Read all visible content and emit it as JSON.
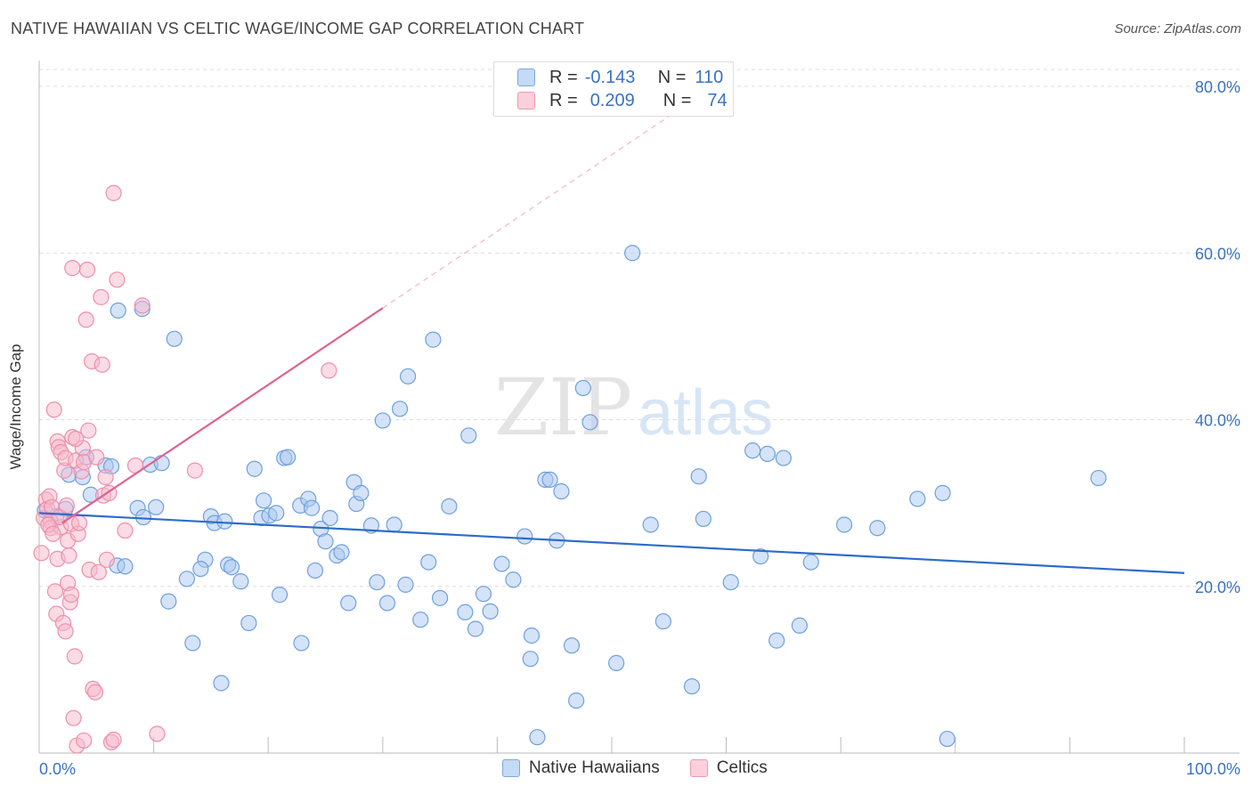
{
  "title": "NATIVE HAWAIIAN VS CELTIC WAGE/INCOME GAP CORRELATION CHART",
  "source": "Source: ZipAtlas.com",
  "watermark": {
    "zip": "ZIP",
    "atlas": "atlas"
  },
  "legend": {
    "rows": [
      {
        "r_label": "R =",
        "r_value": "-0.143",
        "n_label": "N =",
        "n_value": "110",
        "color": "#a9c8f0"
      },
      {
        "r_label": "R =",
        "r_value": "0.209",
        "n_label": "N =",
        "n_value": "74",
        "color": "#f7b8cb"
      }
    ]
  },
  "chart_data": {
    "type": "scatter",
    "title": "NATIVE HAWAIIAN VS CELTIC WAGE/INCOME GAP CORRELATION CHART",
    "xlabel": "",
    "ylabel": "Wage/Income Gap",
    "xlim": [
      0,
      100
    ],
    "ylim": [
      0,
      80
    ],
    "x_tick_labels": [
      "0.0%",
      "100.0%"
    ],
    "y_tick_labels": [
      "20.0%",
      "40.0%",
      "60.0%",
      "80.0%"
    ],
    "y_ticks": [
      20,
      40,
      60,
      80
    ],
    "grid": true,
    "series": [
      {
        "name": "Native Hawaiians",
        "color": "#a9c8f0",
        "stroke": "#6fa0dd",
        "line_color": "#2d6cc9",
        "trend": {
          "x": [
            0,
            100
          ],
          "y": [
            28.8,
            21.6
          ]
        },
        "points": [
          [
            0.5,
            29.1
          ],
          [
            1.5,
            28.4
          ],
          [
            2.3,
            29.3
          ],
          [
            2.6,
            33.4
          ],
          [
            3.8,
            33.1
          ],
          [
            4.1,
            35.5
          ],
          [
            4.5,
            31.0
          ],
          [
            5.8,
            34.5
          ],
          [
            6.3,
            34.4
          ],
          [
            6.8,
            22.5
          ],
          [
            6.9,
            53.1
          ],
          [
            7.5,
            22.4
          ],
          [
            8.6,
            29.4
          ],
          [
            9.1,
            28.3
          ],
          [
            9.0,
            53.3
          ],
          [
            9.7,
            34.6
          ],
          [
            10.2,
            29.5
          ],
          [
            10.7,
            34.8
          ],
          [
            11.3,
            18.2
          ],
          [
            11.8,
            49.7
          ],
          [
            12.9,
            20.9
          ],
          [
            13.4,
            13.2
          ],
          [
            14.5,
            23.2
          ],
          [
            14.1,
            22.1
          ],
          [
            15.0,
            28.4
          ],
          [
            15.3,
            27.6
          ],
          [
            15.9,
            8.4
          ],
          [
            16.2,
            27.8
          ],
          [
            16.5,
            22.6
          ],
          [
            16.8,
            22.3
          ],
          [
            17.6,
            20.6
          ],
          [
            18.3,
            15.6
          ],
          [
            18.8,
            34.1
          ],
          [
            19.4,
            28.2
          ],
          [
            19.6,
            30.3
          ],
          [
            20.1,
            28.5
          ],
          [
            20.7,
            28.8
          ],
          [
            21.0,
            19.0
          ],
          [
            21.4,
            35.4
          ],
          [
            21.7,
            35.5
          ],
          [
            22.8,
            29.7
          ],
          [
            22.9,
            13.2
          ],
          [
            23.5,
            30.5
          ],
          [
            23.8,
            29.4
          ],
          [
            24.1,
            21.9
          ],
          [
            24.6,
            26.9
          ],
          [
            25.0,
            25.4
          ],
          [
            25.4,
            28.2
          ],
          [
            26.0,
            23.7
          ],
          [
            26.4,
            24.1
          ],
          [
            27.0,
            18.0
          ],
          [
            27.5,
            32.5
          ],
          [
            27.7,
            29.9
          ],
          [
            28.1,
            31.2
          ],
          [
            29.0,
            27.3
          ],
          [
            29.5,
            20.5
          ],
          [
            30.0,
            39.9
          ],
          [
            30.4,
            18.0
          ],
          [
            31.0,
            27.4
          ],
          [
            31.5,
            41.3
          ],
          [
            32.0,
            20.2
          ],
          [
            32.2,
            45.2
          ],
          [
            33.3,
            16.0
          ],
          [
            34.0,
            22.9
          ],
          [
            34.4,
            49.6
          ],
          [
            35.0,
            18.6
          ],
          [
            35.8,
            29.6
          ],
          [
            37.2,
            16.9
          ],
          [
            37.5,
            38.1
          ],
          [
            38.1,
            14.9
          ],
          [
            38.8,
            19.1
          ],
          [
            39.4,
            17.0
          ],
          [
            40.4,
            22.7
          ],
          [
            41.4,
            20.8
          ],
          [
            42.4,
            26.0
          ],
          [
            43.0,
            14.1
          ],
          [
            42.9,
            11.3
          ],
          [
            43.5,
            1.9
          ],
          [
            44.2,
            32.8
          ],
          [
            44.6,
            32.8
          ],
          [
            45.2,
            25.5
          ],
          [
            45.6,
            31.4
          ],
          [
            46.5,
            12.9
          ],
          [
            46.9,
            6.3
          ],
          [
            47.5,
            43.8
          ],
          [
            48.1,
            39.7
          ],
          [
            50.4,
            10.8
          ],
          [
            51.8,
            60.0
          ],
          [
            53.4,
            27.4
          ],
          [
            54.5,
            15.8
          ],
          [
            57.0,
            8.0
          ],
          [
            57.6,
            33.2
          ],
          [
            58.0,
            28.1
          ],
          [
            60.4,
            20.5
          ],
          [
            62.3,
            36.3
          ],
          [
            63.0,
            23.6
          ],
          [
            63.6,
            35.9
          ],
          [
            64.4,
            13.5
          ],
          [
            65.0,
            35.4
          ],
          [
            66.4,
            15.3
          ],
          [
            67.4,
            22.9
          ],
          [
            70.3,
            27.4
          ],
          [
            73.2,
            27.0
          ],
          [
            76.7,
            30.5
          ],
          [
            78.9,
            31.2
          ],
          [
            79.3,
            1.7
          ],
          [
            92.5,
            33.0
          ]
        ]
      },
      {
        "name": "Celtics",
        "color": "#f7b8cb",
        "stroke": "#ee8fab",
        "line_color": "#e0628f",
        "trend": {
          "x": [
            2,
            30
          ],
          "y": [
            27.6,
            53.4
          ]
        },
        "trend_dashed": {
          "x": [
            30,
            60
          ],
          "y": [
            53.4,
            81.0
          ]
        },
        "points": [
          [
            0.2,
            24.0
          ],
          [
            0.4,
            28.2
          ],
          [
            0.6,
            30.4
          ],
          [
            0.7,
            29.3
          ],
          [
            0.9,
            30.8
          ],
          [
            1.0,
            27.8
          ],
          [
            1.1,
            29.5
          ],
          [
            1.0,
            27.0
          ],
          [
            1.3,
            41.2
          ],
          [
            1.4,
            19.4
          ],
          [
            1.5,
            16.7
          ],
          [
            1.6,
            23.3
          ],
          [
            1.6,
            37.4
          ],
          [
            1.7,
            36.7
          ],
          [
            1.9,
            36.1
          ],
          [
            1.9,
            27.1
          ],
          [
            2.1,
            15.6
          ],
          [
            2.2,
            33.9
          ],
          [
            2.3,
            35.4
          ],
          [
            2.3,
            14.6
          ],
          [
            2.5,
            20.4
          ],
          [
            2.5,
            25.5
          ],
          [
            2.6,
            23.7
          ],
          [
            2.7,
            18.1
          ],
          [
            2.8,
            27.5
          ],
          [
            2.8,
            19.0
          ],
          [
            2.9,
            37.9
          ],
          [
            2.9,
            58.2
          ],
          [
            3.0,
            4.2
          ],
          [
            3.1,
            11.6
          ],
          [
            3.2,
            35.1
          ],
          [
            3.3,
            0.9
          ],
          [
            3.4,
            26.3
          ],
          [
            3.5,
            27.6
          ],
          [
            3.7,
            33.8
          ],
          [
            3.8,
            36.6
          ],
          [
            3.9,
            34.9
          ],
          [
            3.9,
            1.5
          ],
          [
            4.1,
            52.0
          ],
          [
            4.2,
            58.0
          ],
          [
            4.3,
            38.7
          ],
          [
            4.4,
            22.0
          ],
          [
            4.6,
            47.0
          ],
          [
            4.7,
            7.7
          ],
          [
            4.9,
            7.3
          ],
          [
            5.0,
            35.5
          ],
          [
            5.2,
            21.7
          ],
          [
            5.4,
            54.7
          ],
          [
            5.5,
            46.6
          ],
          [
            5.6,
            30.9
          ],
          [
            5.8,
            33.1
          ],
          [
            5.9,
            23.2
          ],
          [
            6.1,
            31.2
          ],
          [
            6.3,
            1.3
          ],
          [
            6.5,
            1.6
          ],
          [
            6.5,
            67.2
          ],
          [
            6.8,
            56.8
          ],
          [
            7.5,
            26.7
          ],
          [
            8.4,
            34.5
          ],
          [
            9.0,
            53.7
          ],
          [
            10.3,
            2.3
          ],
          [
            13.6,
            33.9
          ],
          [
            25.3,
            45.9
          ],
          [
            3.2,
            37.7
          ],
          [
            1.8,
            28.3
          ],
          [
            0.8,
            27.4
          ],
          [
            2.4,
            29.7
          ],
          [
            1.2,
            26.3
          ]
        ]
      }
    ]
  }
}
